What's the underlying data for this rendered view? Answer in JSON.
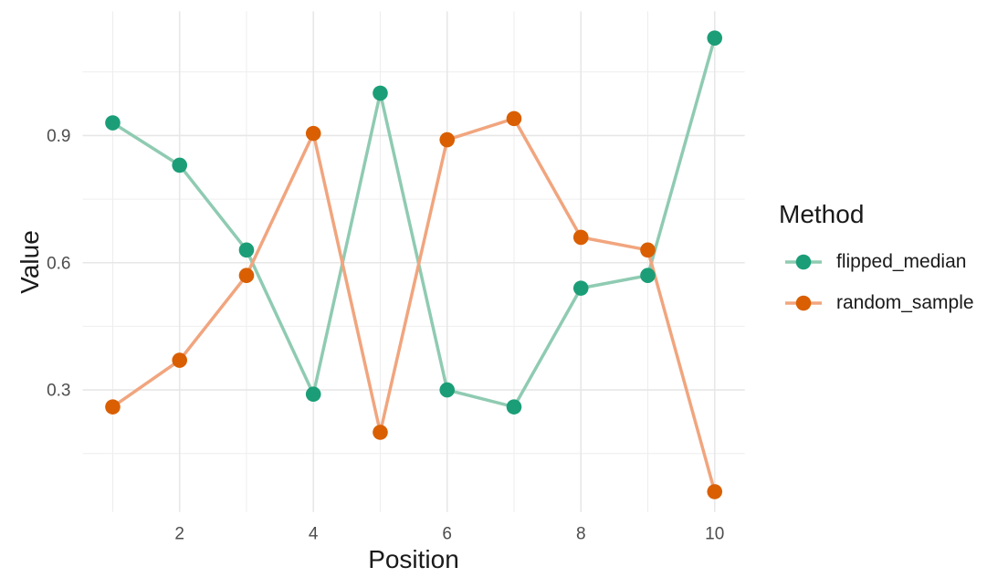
{
  "chart_data": {
    "type": "line",
    "title": "",
    "xlabel": "Position",
    "ylabel": "Value",
    "x": [
      1,
      2,
      3,
      4,
      5,
      6,
      7,
      8,
      9,
      10
    ],
    "series": [
      {
        "name": "flipped_median",
        "point_color": "#1b9e77",
        "line_color": "#8fcbb2",
        "values": [
          0.93,
          0.83,
          0.63,
          0.29,
          1.0,
          0.3,
          0.26,
          0.54,
          0.57,
          1.13
        ]
      },
      {
        "name": "random_sample",
        "point_color": "#d95f02",
        "line_color": "#f1a57e",
        "values": [
          0.26,
          0.37,
          0.57,
          0.905,
          0.2,
          0.89,
          0.94,
          0.66,
          0.63,
          0.06
        ]
      }
    ],
    "legend": {
      "title": "Method",
      "position": "right"
    },
    "x_ticks": [
      2,
      4,
      6,
      8,
      10
    ],
    "x_tick_labels": [
      "2",
      "4",
      "6",
      "8",
      "10"
    ],
    "x_minor_ticks": [
      1,
      3,
      5,
      7,
      9
    ],
    "y_ticks": [
      0.3,
      0.6,
      0.9
    ],
    "y_tick_labels": [
      "0.3",
      "0.6",
      "0.9"
    ],
    "y_minor_ticks": [
      0.15,
      0.45,
      0.75,
      1.05
    ],
    "xlim": [
      0.55,
      10.45
    ],
    "ylim": [
      0.012,
      1.193
    ],
    "grid": true
  },
  "colors": {
    "background": "#ffffff",
    "grid_major": "#e7e7e7",
    "grid_minor": "#eeeeee",
    "tick_label": "#4d4d4d",
    "axis_title": "#1a1a1a",
    "legend_text": "#1a1a1a"
  }
}
